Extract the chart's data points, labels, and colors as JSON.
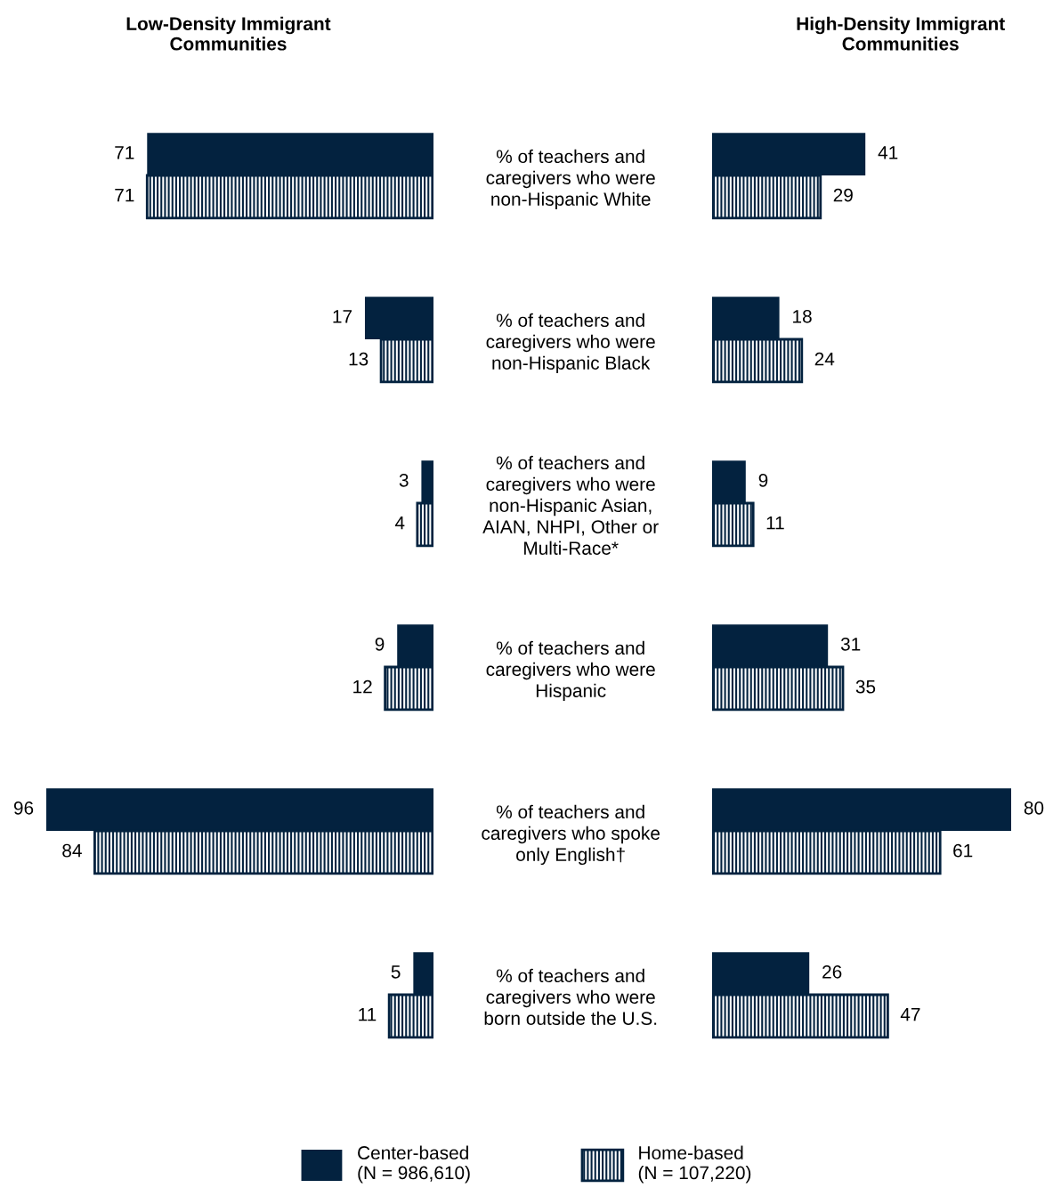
{
  "chart_data": [
    {
      "type": "bar",
      "orientation": "horizontal",
      "title": "Low-Density Immigrant\nCommunities",
      "categories": [
        "% of teachers and\ncaregivers who were\nnon-Hispanic White",
        "% of teachers and\ncaregivers who were\nnon-Hispanic Black",
        "% of teachers and\ncaregivers who were\nnon-Hispanic Asian,\nAIAN, NHPI, Other or\nMulti-Race*",
        "% of teachers and\ncaregivers who were\nHispanic",
        "% of teachers and\ncaregivers who spoke\nonly English†",
        "% of teachers and\ncaregivers who were\nborn outside the U.S."
      ],
      "series": [
        {
          "name": "Center-based\n(N = 986,610)",
          "color": "#03223f",
          "values": [
            71,
            17,
            3,
            9,
            96,
            5
          ]
        },
        {
          "name": "Home-based\n(N = 107,220)",
          "color": "#03223f",
          "values": [
            71,
            13,
            4,
            12,
            84,
            11
          ]
        }
      ],
      "xlim": [
        96,
        0
      ],
      "tick_labels": "y",
      "data_labels": true,
      "legend": "bottom",
      "grid": false
    },
    {
      "type": "bar",
      "orientation": "horizontal",
      "title": "High-Density Immigrant\nCommunities",
      "categories": [
        null,
        null,
        null,
        null,
        null,
        null
      ],
      "series": [
        {
          "color": "#03223f",
          "values": [
            41,
            18,
            9,
            31,
            80,
            26
          ]
        },
        {
          "color": "#03223f",
          "values": [
            29,
            24,
            11,
            35,
            61,
            47
          ]
        }
      ],
      "xlim": [
        0,
        80
      ],
      "tick_labels": false,
      "data_labels": true,
      "grid": false
    }
  ]
}
